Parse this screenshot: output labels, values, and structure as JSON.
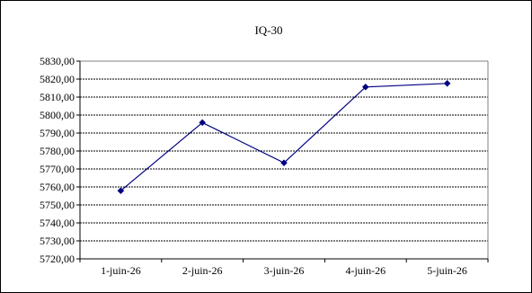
{
  "chart_data": {
    "type": "line",
    "title": "IQ-30",
    "categories": [
      "1-juin-26",
      "2-juin-26",
      "3-juin-26",
      "4-juin-26",
      "5-juin-26"
    ],
    "values": [
      5757.9,
      5795.8,
      5773.4,
      5815.6,
      5817.6
    ],
    "ylim": [
      5720,
      5830
    ],
    "ytick_step": 10,
    "ytick_labels": [
      "5720,00",
      "5730,00",
      "5740,00",
      "5750,00",
      "5760,00",
      "5770,00",
      "5780,00",
      "5790,00",
      "5800,00",
      "5810,00",
      "5820,00",
      "5830,00"
    ],
    "grid": true,
    "legend": "none",
    "series_color": "#000080",
    "marker": "diamond"
  }
}
